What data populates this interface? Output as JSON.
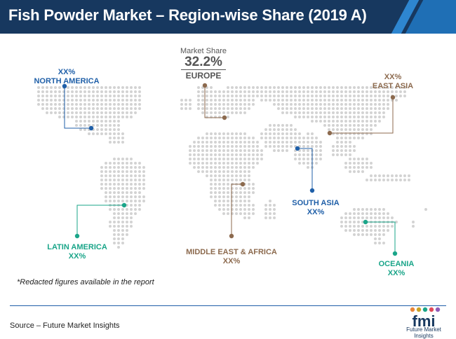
{
  "title": "Fish Powder Market – Region-wise Share (2019 A)",
  "chart_data": {
    "type": "map",
    "title": "Fish Powder Market – Region-wise Share (2019 A)",
    "highlight": {
      "region": "EUROPE",
      "caption": "Market Share",
      "value": "32.2%"
    },
    "regions": [
      {
        "name": "NORTH AMERICA",
        "share": "XX%"
      },
      {
        "name": "EUROPE",
        "share": "32.2%"
      },
      {
        "name": "EAST ASIA",
        "share": "XX%"
      },
      {
        "name": "LATIN AMERICA",
        "share": "XX%"
      },
      {
        "name": "MIDDLE EAST & AFRICA",
        "share": "XX%"
      },
      {
        "name": "SOUTH ASIA",
        "share": "XX%"
      },
      {
        "name": "OCEANIA",
        "share": "XX%"
      }
    ]
  },
  "labels": {
    "north_america": {
      "share": "XX%",
      "name": "NORTH AMERICA"
    },
    "east_asia": {
      "share": "XX%",
      "name": "EAST ASIA"
    },
    "latin_america": {
      "name": "LATIN AMERICA",
      "share": "XX%"
    },
    "mea": {
      "name": "MIDDLE EAST & AFRICA",
      "share": "XX%"
    },
    "south_asia": {
      "name": "SOUTH ASIA",
      "share": "XX%"
    },
    "oceania": {
      "name": "OCEANIA",
      "share": "XX%"
    },
    "europe": {
      "caption": "Market Share",
      "value": "32.2%",
      "name": "EUROPE"
    }
  },
  "note": "*Redacted figures available in the report",
  "source": "Source – Future Market Insights",
  "logo": {
    "mark": "fmi",
    "text": "Future Market Insights"
  },
  "colors": {
    "header": "#17385f",
    "blue": "#1f5fa8",
    "brown": "#8c6a4e",
    "teal": "#1aa589",
    "dots": "#d3d3d3"
  }
}
